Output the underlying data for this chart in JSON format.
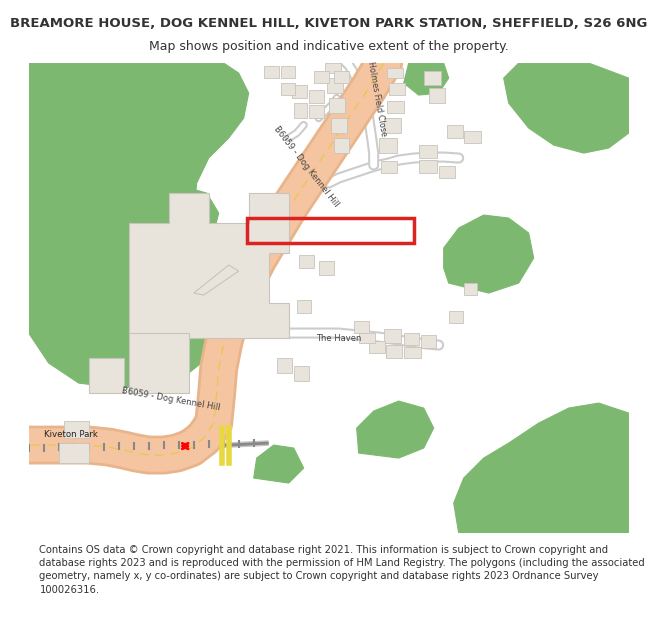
{
  "title": "BREAMORE HOUSE, DOG KENNEL HILL, KIVETON PARK STATION, SHEFFIELD, S26 6NG",
  "subtitle": "Map shows position and indicative extent of the property.",
  "footer": "Contains OS data © Crown copyright and database right 2021. This information is subject to Crown copyright and database rights 2023 and is reproduced with the permission of HM Land Registry. The polygons (including the associated geometry, namely x, y co-ordinates) are subject to Crown copyright and database rights 2023 Ordnance Survey 100026316.",
  "bg_color": "#ffffff",
  "map_bg": "#ffffff",
  "road_color_main": "#f5c4a0",
  "road_outline": "#e8b48a",
  "green_color": "#7db870",
  "building_color": "#e8e4dc",
  "building_outline": "#c8c4bc",
  "plot_color": "#dd2222",
  "text_color": "#333333",
  "title_fontsize": 9.5,
  "subtitle_fontsize": 9,
  "footer_fontsize": 7.2,
  "road_label_color": "#444444",
  "white": "#ffffff",
  "railway_color": "#888888",
  "yellow_line": "#e8c840"
}
